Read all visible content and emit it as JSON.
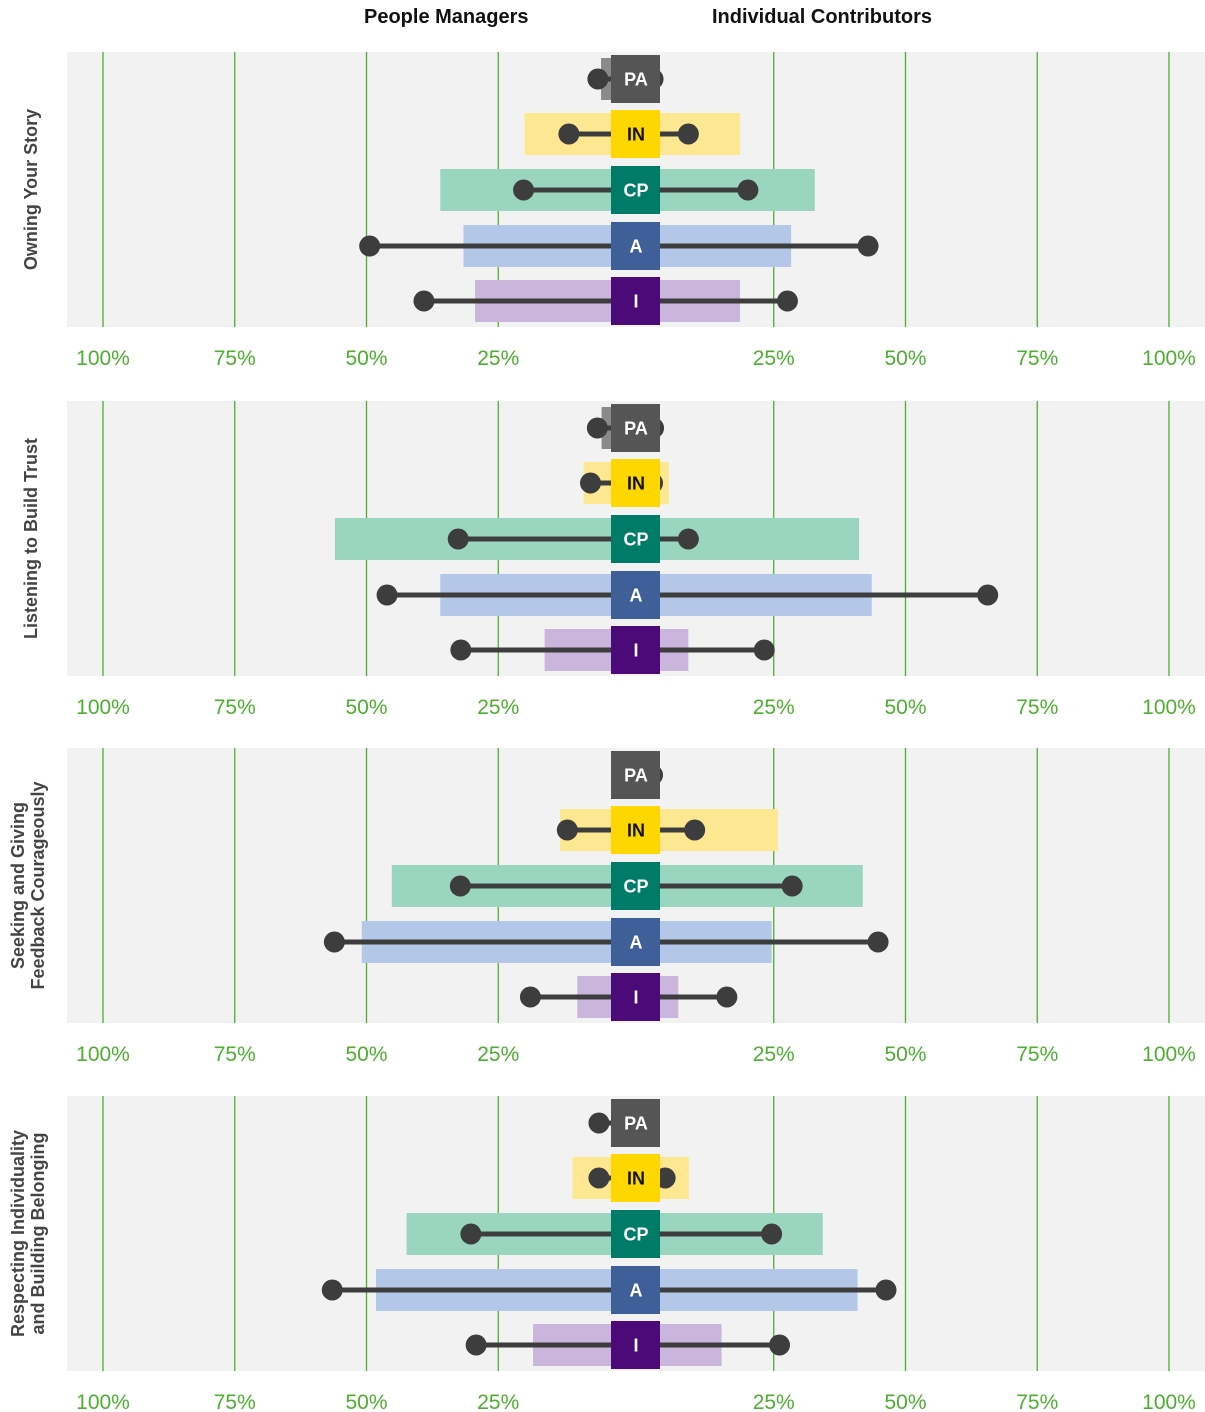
{
  "headers": {
    "left": "People Managers",
    "right": "Individual Contributors"
  },
  "chart_data": {
    "type": "dumbbell-bar",
    "axis": {
      "range": [
        -100,
        100
      ],
      "ticks": [
        -100,
        -75,
        -50,
        -25,
        25,
        50,
        75,
        100
      ],
      "tick_labels": [
        "100%",
        "75%",
        "50%",
        "25%",
        "25%",
        "50%",
        "75%",
        "100%"
      ],
      "grid": true,
      "center_gap_percent": 4.7
    },
    "colors": {
      "panel_bg": "#f2f2f2",
      "grid": "#4caf2f",
      "tick_text": "#4caf2f",
      "dumbbell": "#3d3d3d",
      "title_text": "#444444"
    },
    "levels": [
      {
        "code": "PA",
        "box": "#555555",
        "text": "#ffffff",
        "bar": "#8a8a8a"
      },
      {
        "code": "IN",
        "box": "#ffd700",
        "text": "#111111",
        "bar": "#fde891"
      },
      {
        "code": "CP",
        "box": "#007b68",
        "text": "#ffffff",
        "bar": "#9ad6bf"
      },
      {
        "code": "A",
        "box": "#3f5f99",
        "text": "#ffffff",
        "bar": "#b3c8e8"
      },
      {
        "code": "I",
        "box": "#4b0a78",
        "text": "#ffffff",
        "bar": "#cab5dc"
      }
    ],
    "panels": [
      {
        "title_lines": [
          "Owning Your Story"
        ],
        "rows": [
          {
            "code": "PA",
            "bar_left": 5.5,
            "bar_right": 2.2,
            "dot_left": 6.1,
            "dot_right": 2.1
          },
          {
            "code": "IN",
            "bar_left": 20.0,
            "bar_right": 18.6,
            "dot_left": 11.6,
            "dot_right": 8.8
          },
          {
            "code": "CP",
            "bar_left": 36.0,
            "bar_right": 32.8,
            "dot_left": 20.2,
            "dot_right": 20.1
          },
          {
            "code": "A",
            "bar_left": 31.6,
            "bar_right": 28.3,
            "dot_left": 49.4,
            "dot_right": 42.9
          },
          {
            "code": "I",
            "bar_left": 29.4,
            "bar_right": 18.6,
            "dot_left": 39.1,
            "dot_right": 27.6
          }
        ]
      },
      {
        "title_lines": [
          "Listening to Build Trust"
        ],
        "rows": [
          {
            "code": "PA",
            "bar_left": 5.4,
            "bar_right": 2.6,
            "dot_left": 6.2,
            "dot_right": 2.2
          },
          {
            "code": "IN",
            "bar_left": 8.8,
            "bar_right": 5.1,
            "dot_left": 7.5,
            "dot_right": 2.0
          },
          {
            "code": "CP",
            "bar_left": 56.0,
            "bar_right": 41.2,
            "dot_left": 32.6,
            "dot_right": 8.8
          },
          {
            "code": "A",
            "bar_left": 36.0,
            "bar_right": 43.6,
            "dot_left": 46.1,
            "dot_right": 65.6
          },
          {
            "code": "I",
            "bar_left": 16.2,
            "bar_right": 8.8,
            "dot_left": 32.1,
            "dot_right": 23.2
          }
        ]
      },
      {
        "title_lines": [
          "Seeking and Giving",
          "Feedback Courageously"
        ],
        "rows": [
          {
            "code": "PA",
            "bar_left": 0.0,
            "bar_right": 2.2,
            "dot_left": 0.0,
            "dot_right": 2.0
          },
          {
            "code": "IN",
            "bar_left": 13.3,
            "bar_right": 25.8,
            "dot_left": 11.9,
            "dot_right": 10.0
          },
          {
            "code": "CP",
            "bar_left": 45.2,
            "bar_right": 41.9,
            "dot_left": 32.2,
            "dot_right": 28.5
          },
          {
            "code": "A",
            "bar_left": 50.9,
            "bar_right": 24.6,
            "dot_left": 56.1,
            "dot_right": 44.8
          },
          {
            "code": "I",
            "bar_left": 10.0,
            "bar_right": 6.9,
            "dot_left": 18.9,
            "dot_right": 16.1
          }
        ]
      },
      {
        "title_lines": [
          "Respecting Individuality",
          "and Building Belonging"
        ],
        "rows": [
          {
            "code": "PA",
            "bar_left": 0.0,
            "bar_right": 2.6,
            "dot_left": 5.9,
            "dot_right": 0.0
          },
          {
            "code": "IN",
            "bar_left": 10.9,
            "bar_right": 8.9,
            "dot_left": 5.9,
            "dot_right": 4.4
          },
          {
            "code": "CP",
            "bar_left": 42.4,
            "bar_right": 34.3,
            "dot_left": 30.2,
            "dot_right": 24.6
          },
          {
            "code": "A",
            "bar_left": 48.2,
            "bar_right": 40.9,
            "dot_left": 56.5,
            "dot_right": 46.3
          },
          {
            "code": "I",
            "bar_left": 18.4,
            "bar_right": 15.1,
            "dot_left": 29.2,
            "dot_right": 26.1
          }
        ]
      }
    ]
  }
}
